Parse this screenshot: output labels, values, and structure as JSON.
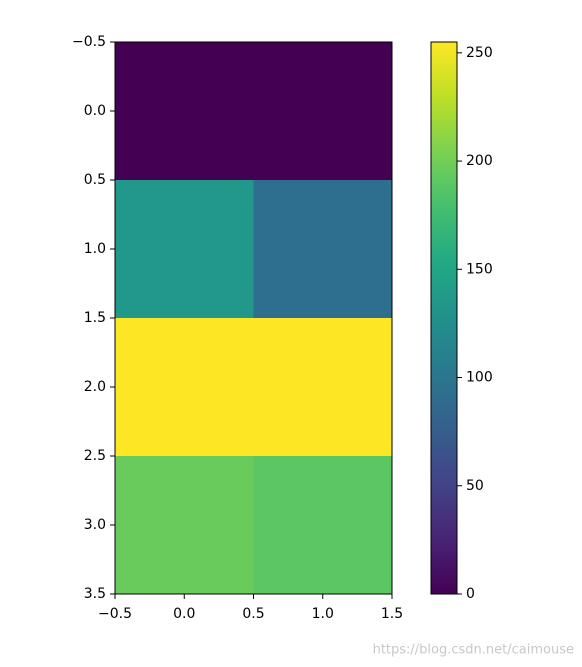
{
  "chart_data": {
    "type": "heatmap",
    "z": [
      [
        0,
        0
      ],
      [
        135,
        92
      ],
      [
        255,
        255
      ],
      [
        196,
        190
      ]
    ],
    "colormap": "viridis",
    "clim": [
      0,
      255
    ],
    "xlim": [
      -0.5,
      1.5
    ],
    "ylim": [
      3.5,
      -0.5
    ],
    "xticks": [
      {
        "value": -0.5,
        "label": "−0.5"
      },
      {
        "value": 0,
        "label": "0.0"
      },
      0.5,
      {
        "value": 1,
        "label": "1.0"
      },
      1.5
    ],
    "yticks": [
      {
        "value": -0.5,
        "label": "−0.5"
      },
      {
        "value": 0,
        "label": "0.0"
      },
      0.5,
      {
        "value": 1,
        "label": "1.0"
      },
      1.5,
      {
        "value": 2,
        "label": "2.0"
      },
      2.5,
      {
        "value": 3,
        "label": "3.0"
      },
      3.5
    ],
    "colorbar_ticks": [
      0,
      50,
      100,
      150,
      200,
      250
    ],
    "watermark": "https://blog.csdn.net/caimouse"
  }
}
